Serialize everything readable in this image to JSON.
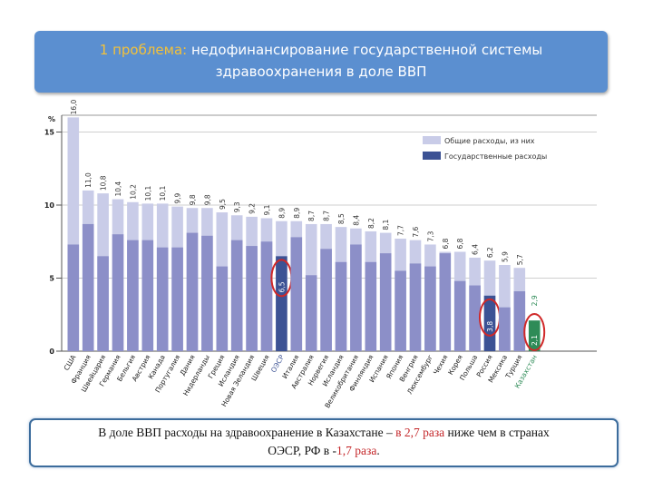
{
  "title": {
    "prefix": "1 проблема:",
    "line1_rest": " недофинансирование государственной системы",
    "line2": "здравоохранения в доле ВВП"
  },
  "footer": {
    "l1_a": "В доле ВВП расходы на здравоохранение в Казахстане – ",
    "l1_b": "в 2,7 раза",
    "l1_c": " ниже чем в странах",
    "l2_a": "ОЭСР, РФ в -",
    "l2_b": "1,7 раза",
    "l2_c": "."
  },
  "colors": {
    "total": "#c9cce8",
    "government": "#8c8fc8",
    "highlight": "#3c5294",
    "kazakhstan": "#2e8b57",
    "circle": "#d02828",
    "accent": "#f3c13a"
  },
  "chart_data": {
    "type": "bar",
    "ylabel": "%",
    "ylim": [
      0,
      17
    ],
    "yticks": [
      0,
      5,
      10,
      15
    ],
    "legend": [
      "Общие расходы, из них",
      "Государственные расходы"
    ],
    "legend_position": "top-right",
    "categories": [
      "США",
      "Франция",
      "Швейцария",
      "Германия",
      "Бельгия",
      "Австрия",
      "Канада",
      "Португалия",
      "Дания",
      "Нидерланды",
      "Греция",
      "Исландия",
      "Новая Зеландия",
      "Швеция",
      "ОЭСР",
      "Италия",
      "Австралия",
      "Норвегия",
      "Исландия",
      "Великобритания",
      "Финляндия",
      "Испания",
      "Япония",
      "Венгрия",
      "Люксембург",
      "Чехия",
      "Корея",
      "Польша",
      "Россия",
      "Мексика",
      "Турция",
      "Казахстан"
    ],
    "series": [
      {
        "name": "Общие расходы, из них",
        "values": [
          16.0,
          11.0,
          10.8,
          10.4,
          10.2,
          10.1,
          10.1,
          9.9,
          9.8,
          9.8,
          9.5,
          9.3,
          9.2,
          9.1,
          8.9,
          8.9,
          8.7,
          8.7,
          8.5,
          8.4,
          8.2,
          8.1,
          7.7,
          7.6,
          7.3,
          6.8,
          6.8,
          6.4,
          6.2,
          5.9,
          5.7,
          2.9
        ]
      },
      {
        "name": "Государственные расходы",
        "values": [
          7.3,
          8.7,
          6.5,
          8.0,
          7.6,
          7.6,
          7.1,
          7.1,
          8.1,
          7.9,
          5.8,
          7.6,
          7.2,
          7.5,
          6.5,
          7.8,
          5.2,
          7.0,
          6.1,
          7.3,
          6.1,
          6.7,
          5.5,
          6.0,
          5.8,
          6.7,
          4.8,
          4.5,
          3.8,
          3.0,
          4.1,
          2.1
        ]
      }
    ],
    "highlighted_values": [
      "6,5",
      "3,8",
      "2,1"
    ]
  }
}
